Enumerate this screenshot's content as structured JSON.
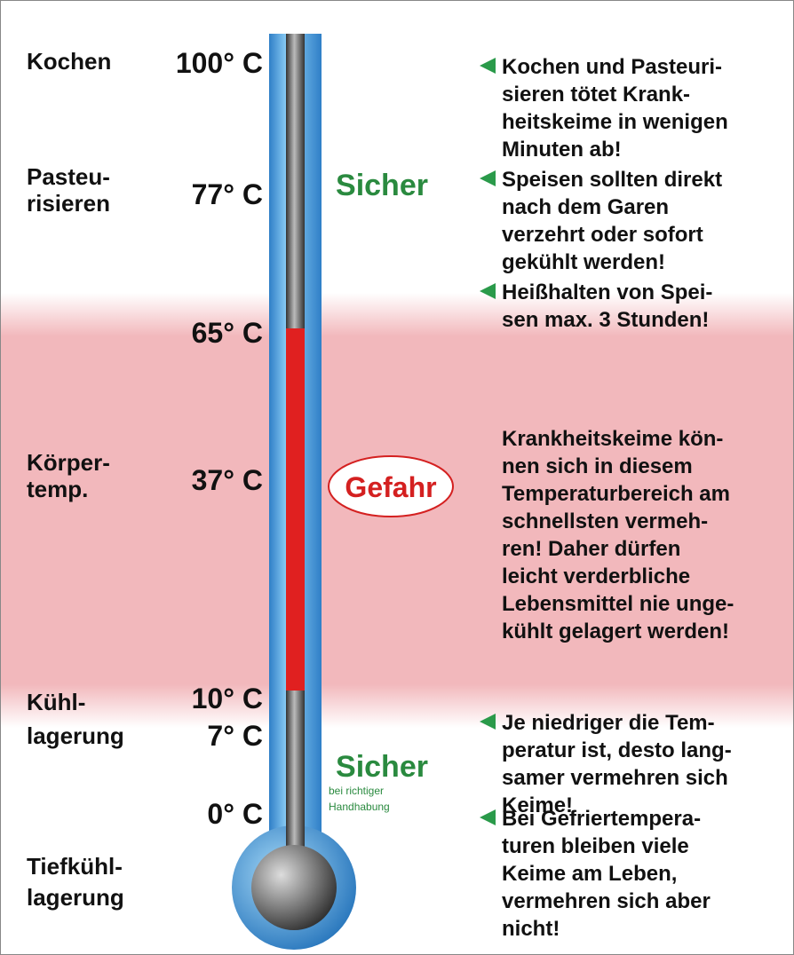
{
  "left_labels": [
    [
      "Kochen"
    ],
    [
      "Pasteu-",
      "risieren"
    ],
    [
      "Körper-",
      "temp."
    ],
    [
      "Kühl-",
      "lagerung"
    ],
    [
      "Tiefkühl-",
      "lagerung"
    ]
  ],
  "temperatures": [
    "100° C",
    "77° C",
    "65° C",
    "37° C",
    "10° C",
    "7° C",
    "0° C"
  ],
  "zones": {
    "safe_top": "Sicher",
    "danger": "Gefahr",
    "safe_bottom": "Sicher",
    "safe_bottom_note": [
      "bei richtiger",
      "Handhabung"
    ]
  },
  "notes": [
    {
      "marker": true,
      "lines": [
        "Kochen und Pasteuri-",
        "sieren tötet Krank-",
        "heitskeime in wenigen",
        "Minuten ab!"
      ]
    },
    {
      "marker": true,
      "lines": [
        "Speisen sollten direkt",
        "nach dem Garen",
        "verzehrt oder sofort",
        "gekühlt werden!"
      ]
    },
    {
      "marker": true,
      "lines": [
        "Heißhalten von Spei-",
        "sen max. 3 Stunden!"
      ]
    },
    {
      "marker": false,
      "lines": [
        "Krankheitskeime kön-",
        "nen sich in diesem",
        "Temperaturbereich am",
        "schnellsten vermeh-",
        "ren! Daher dürfen",
        "leicht verderbliche",
        "Lebensmittel nie unge-",
        "kühlt gelagert werden!"
      ]
    },
    {
      "marker": true,
      "lines": [
        "Je niedriger die Tem-",
        "peratur ist, desto lang-",
        "samer vermehren sich",
        "Keime!"
      ]
    },
    {
      "marker": true,
      "lines": [
        "Bei Gefriertempera-",
        "turen bleiben viele",
        "Keime am Leben,",
        "vermehren sich aber",
        "nicht!"
      ]
    }
  ]
}
